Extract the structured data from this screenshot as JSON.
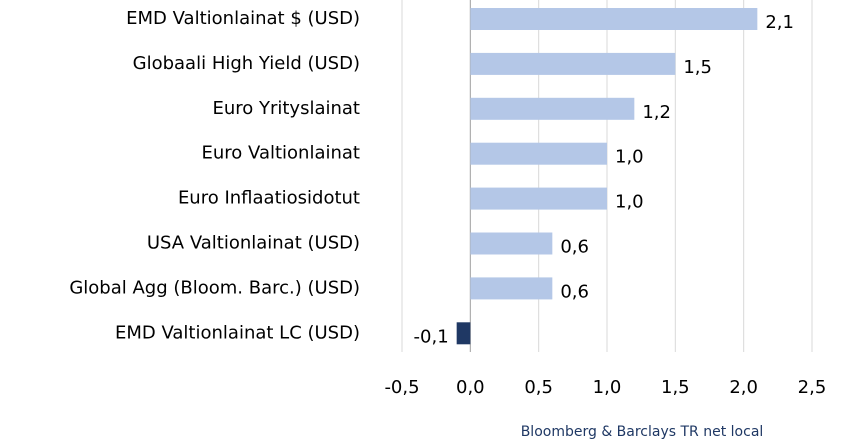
{
  "chart_data": {
    "type": "barh",
    "categories": [
      "EMD Valtionlainat $ (USD)",
      "Globaali High Yield (USD)",
      "Euro Yrityslainat",
      "Euro Valtionlainat",
      "Euro Inflaatiosidotut",
      "USA Valtionlainat (USD)",
      "Global Agg (Bloom. Barc.) (USD)",
      "EMD Valtionlainat LC (USD)"
    ],
    "values": [
      2.1,
      1.5,
      1.2,
      1.0,
      1.0,
      0.6,
      0.6,
      -0.1
    ],
    "value_labels": [
      "2,1",
      "1,5",
      "1,2",
      "1,0",
      "1,0",
      "0,6",
      "0,6",
      "-0,1"
    ],
    "colors": [
      "#b4c7e7",
      "#b4c7e7",
      "#b4c7e7",
      "#b4c7e7",
      "#b4c7e7",
      "#b4c7e7",
      "#b4c7e7",
      "#1f3864"
    ],
    "xlabel": "Bloomberg & Barclays TR net local",
    "xlim": [
      -0.5,
      2.5
    ],
    "xticks": [
      {
        "value": -0.5,
        "label": "-0,5"
      },
      {
        "value": 0,
        "label": "0,0"
      },
      {
        "value": 0.5,
        "label": "0,5"
      },
      {
        "value": 1,
        "label": "1,0"
      },
      {
        "value": 1.5,
        "label": "1,5"
      },
      {
        "value": 2,
        "label": "2,0"
      },
      {
        "value": 2.5,
        "label": "2,5"
      }
    ],
    "grid": true
  }
}
